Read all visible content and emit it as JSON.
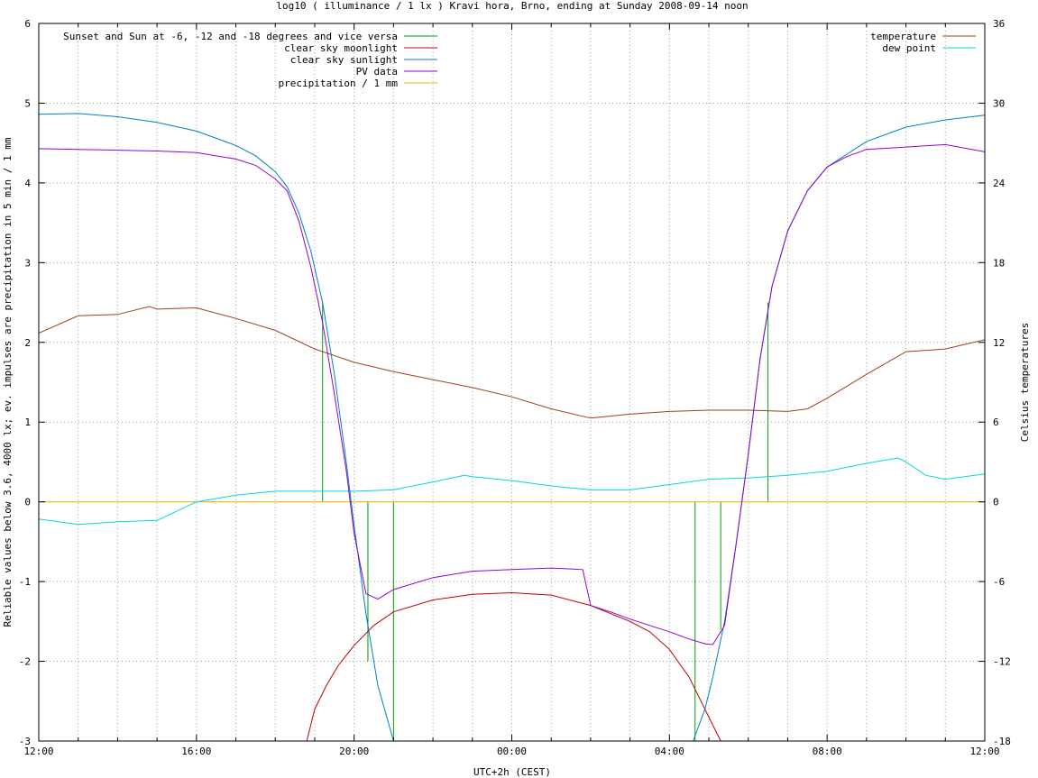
{
  "chart_data": {
    "type": "line",
    "title": "log10 ( illuminance / 1 lx ) Kravi hora, Brno, ending at Sunday 2008-09-14 noon",
    "xlabel": "UTC+2h (CEST)",
    "ylabel": "Reliable values below 3.6, 4000 lx; ev. impulses are precipitation in 5 min / 1 mm",
    "y2label": "Celsius temperatures",
    "x_ticks": [
      "12:00",
      "16:00",
      "20:00",
      "00:00",
      "04:00",
      "08:00",
      "12:00"
    ],
    "x_range_hours": [
      12,
      36
    ],
    "y_ticks": [
      "6",
      "5",
      "4",
      "3",
      "2",
      "1",
      "0",
      "-1",
      "-2",
      "-3"
    ],
    "ylim": [
      -3,
      6
    ],
    "y2_ticks": [
      "36",
      "30",
      "24",
      "18",
      "12",
      "6",
      "0",
      "-6",
      "-12",
      "-18"
    ],
    "y2lim": [
      -18,
      36
    ],
    "grid": true,
    "legend_left": {
      "placement": "top-left",
      "entries": [
        {
          "name": "Sunset and Sun at -6, -12 and -18 degrees and vice versa",
          "color": "#00a000"
        },
        {
          "name": "clear sky moonlight",
          "color": "#c00000"
        },
        {
          "name": "clear sky sunlight",
          "color": "#0080c0"
        },
        {
          "name": "PV data",
          "color": "#9400d3"
        },
        {
          "name": "precipitation / 1 mm",
          "color": "#e8b400"
        }
      ]
    },
    "legend_right": {
      "placement": "top-right",
      "entries": [
        {
          "name": "temperature",
          "color": "#a0401a"
        },
        {
          "name": "dew point",
          "color": "#00d8d8"
        }
      ]
    },
    "sun_events": [
      {
        "x": 19.2,
        "y": 2.5
      },
      {
        "x": 20.35,
        "y": -2.0
      },
      {
        "x": 21.0,
        "y": -3.0
      },
      {
        "x": 28.65,
        "y": -3.0
      },
      {
        "x": 29.3,
        "y": -1.6
      },
      {
        "x": 30.5,
        "y": 2.5
      }
    ],
    "series": [
      {
        "name": "clear sky sunlight",
        "axis": "y",
        "x": [
          12,
          13,
          14,
          15,
          16,
          17,
          17.5,
          18,
          18.3,
          18.6,
          18.9,
          19.2,
          19.5,
          19.8,
          20.0,
          20.3,
          20.6,
          21.0,
          28.6,
          28.9,
          29.1,
          29.4,
          29.7,
          30.0,
          30.3,
          30.6,
          31.0,
          31.5,
          32.0,
          33.0,
          34.0,
          35.0,
          36.0
        ],
        "y": [
          4.86,
          4.87,
          4.83,
          4.76,
          4.65,
          4.47,
          4.34,
          4.14,
          3.95,
          3.62,
          3.15,
          2.5,
          1.6,
          0.5,
          -0.3,
          -1.4,
          -2.3,
          -3.0,
          -3.0,
          -2.6,
          -2.2,
          -1.5,
          -0.5,
          0.6,
          1.8,
          2.7,
          3.4,
          3.9,
          4.2,
          4.52,
          4.7,
          4.79,
          4.85
        ]
      },
      {
        "name": "clear sky moonlight",
        "axis": "y",
        "x": [
          18.8,
          19.0,
          19.3,
          19.6,
          20.0,
          20.5,
          21.0,
          22.0,
          23.0,
          24.0,
          25.0,
          26.0,
          27.0,
          27.5,
          28.0,
          28.5,
          29.0,
          29.3,
          29.5
        ],
        "y": [
          -3.0,
          -2.6,
          -2.3,
          -2.05,
          -1.8,
          -1.55,
          -1.38,
          -1.23,
          -1.16,
          -1.14,
          -1.17,
          -1.3,
          -1.5,
          -1.63,
          -1.85,
          -2.2,
          -2.7,
          -3.0,
          -3.3
        ]
      },
      {
        "name": "PV data",
        "axis": "y",
        "x": [
          12,
          13,
          14,
          15,
          16,
          17,
          17.5,
          18,
          18.3,
          18.6,
          18.9,
          19.2,
          19.5,
          19.8,
          20.0,
          20.3,
          20.6,
          21.0,
          22.0,
          23.0,
          24.0,
          25.0,
          25.8,
          26.0,
          26.5,
          27.0,
          27.5,
          28.0,
          28.5,
          28.9,
          29.1,
          29.4,
          29.7,
          30.0,
          30.3,
          30.6,
          31.0,
          31.5,
          32.0,
          32.5,
          33.0,
          34.0,
          35.0,
          36.0
        ],
        "y": [
          4.43,
          4.42,
          4.41,
          4.4,
          4.38,
          4.3,
          4.22,
          4.05,
          3.9,
          3.52,
          2.95,
          2.25,
          1.35,
          0.4,
          -0.4,
          -1.15,
          -1.22,
          -1.1,
          -0.95,
          -0.87,
          -0.85,
          -0.83,
          -0.85,
          -1.3,
          -1.38,
          -1.47,
          -1.55,
          -1.63,
          -1.72,
          -1.78,
          -1.79,
          -1.55,
          -0.5,
          0.6,
          1.8,
          2.7,
          3.4,
          3.9,
          4.2,
          4.33,
          4.42,
          4.45,
          4.48,
          4.39
        ]
      },
      {
        "name": "temperature",
        "axis": "y2",
        "x": [
          12,
          13,
          14,
          14.8,
          15,
          16,
          17,
          18,
          19,
          20,
          21,
          22,
          23,
          24,
          25,
          26,
          27,
          28,
          29,
          30,
          31,
          31.5,
          32,
          33,
          34,
          35,
          36
        ],
        "y": [
          12.7,
          14.0,
          14.1,
          14.7,
          14.5,
          14.6,
          13.8,
          12.9,
          11.5,
          10.5,
          9.8,
          9.2,
          8.6,
          7.9,
          7.0,
          6.3,
          6.6,
          6.8,
          6.9,
          6.9,
          6.8,
          7.0,
          7.8,
          9.6,
          11.3,
          11.5,
          12.2
        ]
      },
      {
        "name": "dew point",
        "axis": "y2",
        "x": [
          12,
          13,
          14,
          15,
          16,
          17,
          18,
          19,
          20,
          21,
          22,
          22.8,
          23,
          24,
          25,
          26,
          27,
          28,
          29,
          30,
          31,
          32,
          33,
          33.8,
          34,
          34.5,
          35,
          36
        ],
        "y": [
          -1.3,
          -1.7,
          -1.5,
          -1.4,
          0.0,
          0.5,
          0.8,
          0.8,
          0.8,
          0.9,
          1.5,
          2.0,
          1.9,
          1.6,
          1.2,
          0.9,
          0.9,
          1.3,
          1.7,
          1.8,
          2.0,
          2.3,
          2.9,
          3.3,
          3.0,
          2.0,
          1.7,
          2.1
        ]
      },
      {
        "name": "precipitation / 1 mm",
        "axis": "y",
        "x": [
          12,
          36
        ],
        "y": [
          0,
          0
        ]
      }
    ]
  }
}
